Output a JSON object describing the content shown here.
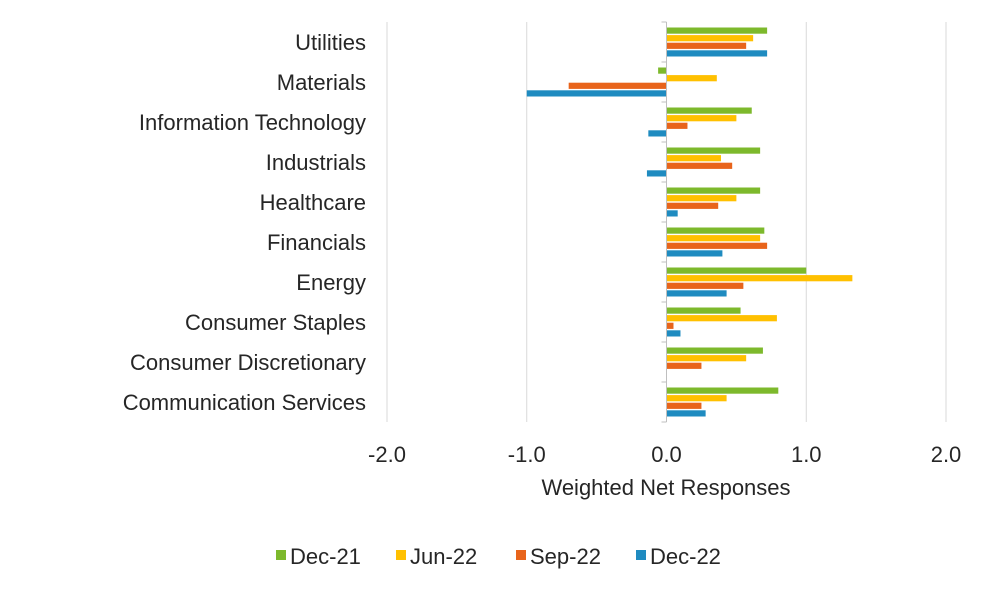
{
  "chart_data": {
    "type": "bar",
    "orientation": "horizontal",
    "title": "",
    "xlabel": "Weighted Net Responses",
    "ylabel": "",
    "xlim": [
      -2.0,
      2.0
    ],
    "xticks": [
      "-2.0",
      "-1.0",
      "0.0",
      "1.0",
      "2.0"
    ],
    "grid": "vertical",
    "legend_position": "bottom",
    "categories": [
      "Utilities",
      "Materials",
      "Information Technology",
      "Industrials",
      "Healthcare",
      "Financials",
      "Energy",
      "Consumer Staples",
      "Consumer Discretionary",
      "Communication Services"
    ],
    "series": [
      {
        "name": "Dec-21",
        "color": "#7DB92C",
        "values": [
          0.72,
          -0.06,
          0.61,
          0.67,
          0.67,
          0.7,
          1.0,
          0.53,
          0.69,
          0.8
        ]
      },
      {
        "name": "Jun-22",
        "color": "#FFC000",
        "values": [
          0.62,
          0.36,
          0.5,
          0.39,
          0.5,
          0.67,
          1.33,
          0.79,
          0.57,
          0.43
        ]
      },
      {
        "name": "Sep-22",
        "color": "#E8641B",
        "values": [
          0.57,
          -0.7,
          0.15,
          0.47,
          0.37,
          0.72,
          0.55,
          0.05,
          0.25,
          0.25
        ]
      },
      {
        "name": "Dec-22",
        "color": "#1F8BC0",
        "values": [
          0.72,
          -1.0,
          -0.13,
          -0.14,
          0.08,
          0.4,
          0.43,
          0.1,
          0.0,
          0.28
        ]
      }
    ]
  }
}
